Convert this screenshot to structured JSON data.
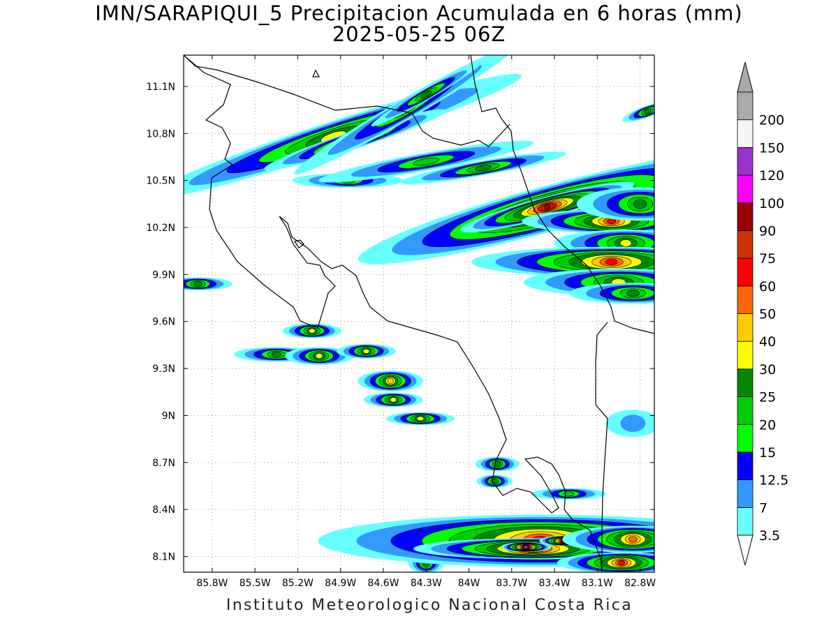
{
  "title": {
    "line1": "IMN/SARAPIQUI_5 Precipitacion Acumulada en 6 horas (mm)",
    "line2": "2025-05-25 06Z"
  },
  "map": {
    "lon_range": [
      -86.0,
      -82.7
    ],
    "lat_range": [
      8.0,
      11.3
    ],
    "lon_ticks": [
      {
        "value": -85.8,
        "label": "85.8W"
      },
      {
        "value": -85.5,
        "label": "85.5W"
      },
      {
        "value": -85.2,
        "label": "85.2W"
      },
      {
        "value": -84.9,
        "label": "84.9W"
      },
      {
        "value": -84.6,
        "label": "84.6W"
      },
      {
        "value": -84.3,
        "label": "84.3W"
      },
      {
        "value": -84.0,
        "label": "84W"
      },
      {
        "value": -83.7,
        "label": "83.7W"
      },
      {
        "value": -83.4,
        "label": "83.4W"
      },
      {
        "value": -83.1,
        "label": "83.1W"
      },
      {
        "value": -82.8,
        "label": "82.8W"
      }
    ],
    "lat_ticks": [
      {
        "value": 8.1,
        "label": "8.1N"
      },
      {
        "value": 8.4,
        "label": "8.4N"
      },
      {
        "value": 8.7,
        "label": "8.7N"
      },
      {
        "value": 9.0,
        "label": "9N"
      },
      {
        "value": 9.3,
        "label": "9.3N"
      },
      {
        "value": 9.6,
        "label": "9.6N"
      },
      {
        "value": 9.9,
        "label": "9.9N"
      },
      {
        "value": 10.2,
        "label": "10.2N"
      },
      {
        "value": 10.5,
        "label": "10.5N"
      },
      {
        "value": 10.8,
        "label": "10.8N"
      },
      {
        "value": 11.1,
        "label": "11.1N"
      }
    ],
    "grid": true
  },
  "legend": {
    "units": "mm",
    "levels": [
      {
        "label": "3.5",
        "color": "#66ffff"
      },
      {
        "label": "7",
        "color": "#3399ff"
      },
      {
        "label": "12.5",
        "color": "#0000ff"
      },
      {
        "label": "15",
        "color": "#00ff00"
      },
      {
        "label": "20",
        "color": "#00cc00"
      },
      {
        "label": "25",
        "color": "#008800"
      },
      {
        "label": "30",
        "color": "#ffff00"
      },
      {
        "label": "40",
        "color": "#ffcc00"
      },
      {
        "label": "50",
        "color": "#ff6600"
      },
      {
        "label": "60",
        "color": "#ff0000"
      },
      {
        "label": "75",
        "color": "#cc3300"
      },
      {
        "label": "90",
        "color": "#990000"
      },
      {
        "label": "100",
        "color": "#ff00ff"
      },
      {
        "label": "120",
        "color": "#9933cc"
      },
      {
        "label": "150",
        "color": "#f5f5f5"
      },
      {
        "label": "200",
        "color": "#aaaaaa"
      }
    ],
    "under_color": "#ffffff",
    "over_color": "#aaaaaa"
  },
  "precip_cells": [
    {
      "lon": -84.95,
      "lat": 10.78,
      "rx": 0.42,
      "ry": 0.09,
      "rot": -18,
      "level": 6
    },
    {
      "lon": -84.8,
      "lat": 10.76,
      "rx": 0.18,
      "ry": 0.05,
      "rot": -18,
      "level": 7
    },
    {
      "lon": -84.45,
      "lat": 10.95,
      "rx": 0.35,
      "ry": 0.06,
      "rot": -30,
      "level": 4
    },
    {
      "lon": -84.3,
      "lat": 11.05,
      "rx": 0.15,
      "ry": 0.03,
      "rot": -30,
      "level": 5
    },
    {
      "lon": -84.85,
      "lat": 10.5,
      "rx": 0.15,
      "ry": 0.04,
      "rot": 0,
      "level": 4
    },
    {
      "lon": -84.3,
      "lat": 10.62,
      "rx": 0.3,
      "ry": 0.05,
      "rot": -10,
      "level": 4
    },
    {
      "lon": -83.9,
      "lat": 10.58,
      "rx": 0.2,
      "ry": 0.04,
      "rot": -10,
      "level": 5
    },
    {
      "lon": -83.4,
      "lat": 10.33,
      "rx": 0.32,
      "ry": 0.14,
      "rot": -15,
      "level": 9
    },
    {
      "lon": -83.45,
      "lat": 10.33,
      "rx": 0.12,
      "ry": 0.06,
      "rot": -15,
      "level": 11
    },
    {
      "lon": -83.0,
      "lat": 10.24,
      "rx": 0.14,
      "ry": 0.07,
      "rot": 0,
      "level": 9
    },
    {
      "lon": -82.8,
      "lat": 10.35,
      "rx": 0.15,
      "ry": 0.1,
      "rot": 0,
      "level": 5
    },
    {
      "lon": -82.9,
      "lat": 10.1,
      "rx": 0.15,
      "ry": 0.08,
      "rot": 0,
      "level": 6
    },
    {
      "lon": -83.0,
      "lat": 9.98,
      "rx": 0.22,
      "ry": 0.09,
      "rot": 0,
      "level": 9
    },
    {
      "lon": -82.95,
      "lat": 9.85,
      "rx": 0.2,
      "ry": 0.08,
      "rot": 0,
      "level": 6
    },
    {
      "lon": -82.85,
      "lat": 9.78,
      "rx": 0.15,
      "ry": 0.06,
      "rot": 0,
      "level": 5
    },
    {
      "lon": -82.75,
      "lat": 10.94,
      "rx": 0.06,
      "ry": 0.03,
      "rot": -20,
      "level": 5
    },
    {
      "lon": -85.9,
      "lat": 9.84,
      "rx": 0.08,
      "ry": 0.035,
      "rot": 0,
      "level": 5
    },
    {
      "lon": -85.1,
      "lat": 9.54,
      "rx": 0.06,
      "ry": 0.04,
      "rot": 0,
      "level": 6
    },
    {
      "lon": -85.35,
      "lat": 9.39,
      "rx": 0.1,
      "ry": 0.04,
      "rot": 0,
      "level": 5
    },
    {
      "lon": -85.05,
      "lat": 9.38,
      "rx": 0.07,
      "ry": 0.05,
      "rot": 0,
      "level": 6
    },
    {
      "lon": -84.72,
      "lat": 9.41,
      "rx": 0.06,
      "ry": 0.04,
      "rot": 0,
      "level": 6
    },
    {
      "lon": -84.55,
      "lat": 9.22,
      "rx": 0.06,
      "ry": 0.06,
      "rot": 0,
      "level": 7
    },
    {
      "lon": -84.53,
      "lat": 9.1,
      "rx": 0.06,
      "ry": 0.04,
      "rot": 0,
      "level": 6
    },
    {
      "lon": -84.34,
      "lat": 8.98,
      "rx": 0.07,
      "ry": 0.035,
      "rot": 0,
      "level": 6
    },
    {
      "lon": -83.8,
      "lat": 8.69,
      "rx": 0.05,
      "ry": 0.04,
      "rot": 0,
      "level": 5
    },
    {
      "lon": -83.82,
      "lat": 8.58,
      "rx": 0.04,
      "ry": 0.035,
      "rot": 0,
      "level": 5
    },
    {
      "lon": -84.3,
      "lat": 8.06,
      "rx": 0.04,
      "ry": 0.06,
      "rot": 0,
      "level": 5
    },
    {
      "lon": -83.5,
      "lat": 8.2,
      "rx": 0.35,
      "ry": 0.16,
      "rot": 0,
      "level": 9
    },
    {
      "lon": -83.55,
      "lat": 8.15,
      "rx": 0.16,
      "ry": 0.06,
      "rot": 0,
      "level": 11
    },
    {
      "lon": -83.6,
      "lat": 8.16,
      "rx": 0.03,
      "ry": 0.025,
      "rot": 0,
      "level": 12
    },
    {
      "lon": -83.33,
      "lat": 8.2,
      "rx": 0.03,
      "ry": 0.025,
      "rot": 0,
      "level": 12
    },
    {
      "lon": -82.93,
      "lat": 8.06,
      "rx": 0.1,
      "ry": 0.06,
      "rot": 0,
      "level": 9
    },
    {
      "lon": -82.85,
      "lat": 8.21,
      "rx": 0.12,
      "ry": 0.08,
      "rot": 0,
      "level": 8
    },
    {
      "lon": -82.85,
      "lat": 8.95,
      "rx": 0.13,
      "ry": 0.08,
      "rot": 0,
      "level": 1
    },
    {
      "lon": -83.3,
      "lat": 8.5,
      "rx": 0.1,
      "ry": 0.03,
      "rot": 0,
      "level": 4
    }
  ],
  "footer": "Instituto Meteorologico Nacional Costa Rica"
}
